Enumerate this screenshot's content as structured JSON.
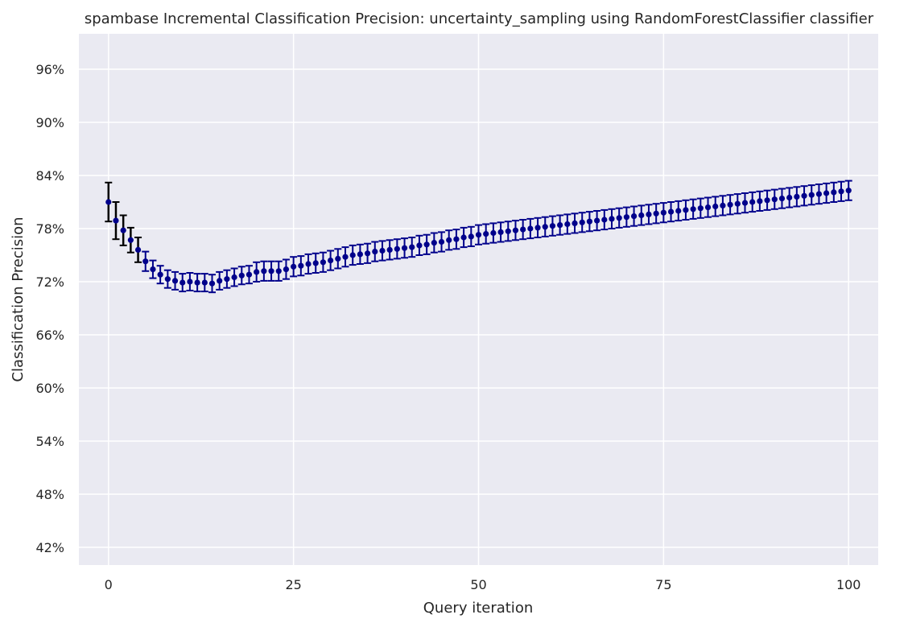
{
  "chart_data": {
    "type": "scatter",
    "title": "spambase Incremental Classification Precision: uncertainty_sampling using RandomForestClassifier classifier",
    "xlabel": "Query iteration",
    "ylabel": "Classification Precision",
    "xlim": [
      -4,
      104
    ],
    "ylim": [
      0.4,
      1.0
    ],
    "x_ticks": [
      0,
      25,
      50,
      75,
      100
    ],
    "x_tick_labels": [
      "0",
      "25",
      "50",
      "75",
      "100"
    ],
    "y_ticks": [
      0.42,
      0.48,
      0.54,
      0.6,
      0.66,
      0.72,
      0.78,
      0.84,
      0.9,
      0.96
    ],
    "y_tick_labels": [
      "42%",
      "48%",
      "54%",
      "60%",
      "66%",
      "72%",
      "78%",
      "84%",
      "90%",
      "96%"
    ],
    "grid": true,
    "colors": {
      "background": "#eaeaf2",
      "grid": "#ffffff",
      "marker": "#00008b",
      "errorbar_early": "#000000",
      "errorbar": "#00008b"
    },
    "series": [
      {
        "name": "precision",
        "x": [
          0,
          1,
          2,
          3,
          4,
          5,
          6,
          7,
          8,
          9,
          10,
          11,
          12,
          13,
          14,
          15,
          16,
          17,
          18,
          19,
          20,
          21,
          22,
          23,
          24,
          25,
          26,
          27,
          28,
          29,
          30,
          31,
          32,
          33,
          34,
          35,
          36,
          37,
          38,
          39,
          40,
          41,
          42,
          43,
          44,
          45,
          46,
          47,
          48,
          49,
          50,
          51,
          52,
          53,
          54,
          55,
          56,
          57,
          58,
          59,
          60,
          61,
          62,
          63,
          64,
          65,
          66,
          67,
          68,
          69,
          70,
          71,
          72,
          73,
          74,
          75,
          76,
          77,
          78,
          79,
          80,
          81,
          82,
          83,
          84,
          85,
          86,
          87,
          88,
          89,
          90,
          91,
          92,
          93,
          94,
          95,
          96,
          97,
          98,
          99,
          100
        ],
        "y": [
          0.81,
          0.789,
          0.778,
          0.767,
          0.756,
          0.743,
          0.734,
          0.728,
          0.723,
          0.721,
          0.719,
          0.72,
          0.719,
          0.719,
          0.718,
          0.721,
          0.723,
          0.725,
          0.727,
          0.728,
          0.731,
          0.732,
          0.732,
          0.732,
          0.734,
          0.737,
          0.738,
          0.74,
          0.741,
          0.742,
          0.744,
          0.746,
          0.748,
          0.75,
          0.751,
          0.752,
          0.754,
          0.755,
          0.756,
          0.757,
          0.758,
          0.759,
          0.761,
          0.762,
          0.764,
          0.765,
          0.767,
          0.768,
          0.77,
          0.771,
          0.773,
          0.774,
          0.775,
          0.776,
          0.777,
          0.778,
          0.779,
          0.78,
          0.781,
          0.782,
          0.783,
          0.784,
          0.785,
          0.786,
          0.787,
          0.788,
          0.789,
          0.79,
          0.791,
          0.792,
          0.793,
          0.794,
          0.795,
          0.796,
          0.797,
          0.798,
          0.799,
          0.8,
          0.801,
          0.802,
          0.803,
          0.804,
          0.805,
          0.806,
          0.807,
          0.808,
          0.809,
          0.81,
          0.811,
          0.812,
          0.813,
          0.814,
          0.815,
          0.816,
          0.817,
          0.818,
          0.819,
          0.82,
          0.821,
          0.822,
          0.823
        ],
        "err": [
          0.022,
          0.021,
          0.017,
          0.014,
          0.014,
          0.011,
          0.01,
          0.01,
          0.01,
          0.01,
          0.01,
          0.01,
          0.01,
          0.01,
          0.01,
          0.01,
          0.01,
          0.01,
          0.01,
          0.01,
          0.011,
          0.011,
          0.011,
          0.011,
          0.011,
          0.011,
          0.011,
          0.011,
          0.011,
          0.011,
          0.011,
          0.011,
          0.011,
          0.011,
          0.011,
          0.011,
          0.011,
          0.011,
          0.011,
          0.011,
          0.011,
          0.011,
          0.011,
          0.011,
          0.011,
          0.011,
          0.011,
          0.011,
          0.011,
          0.011,
          0.011,
          0.011,
          0.011,
          0.011,
          0.011,
          0.011,
          0.011,
          0.011,
          0.011,
          0.011,
          0.011,
          0.011,
          0.011,
          0.011,
          0.011,
          0.011,
          0.011,
          0.011,
          0.011,
          0.011,
          0.011,
          0.011,
          0.011,
          0.011,
          0.011,
          0.011,
          0.011,
          0.011,
          0.011,
          0.011,
          0.011,
          0.011,
          0.011,
          0.011,
          0.011,
          0.011,
          0.011,
          0.011,
          0.011,
          0.011,
          0.011,
          0.011,
          0.011,
          0.011,
          0.011,
          0.011,
          0.011,
          0.011,
          0.011,
          0.011,
          0.011
        ]
      }
    ]
  }
}
